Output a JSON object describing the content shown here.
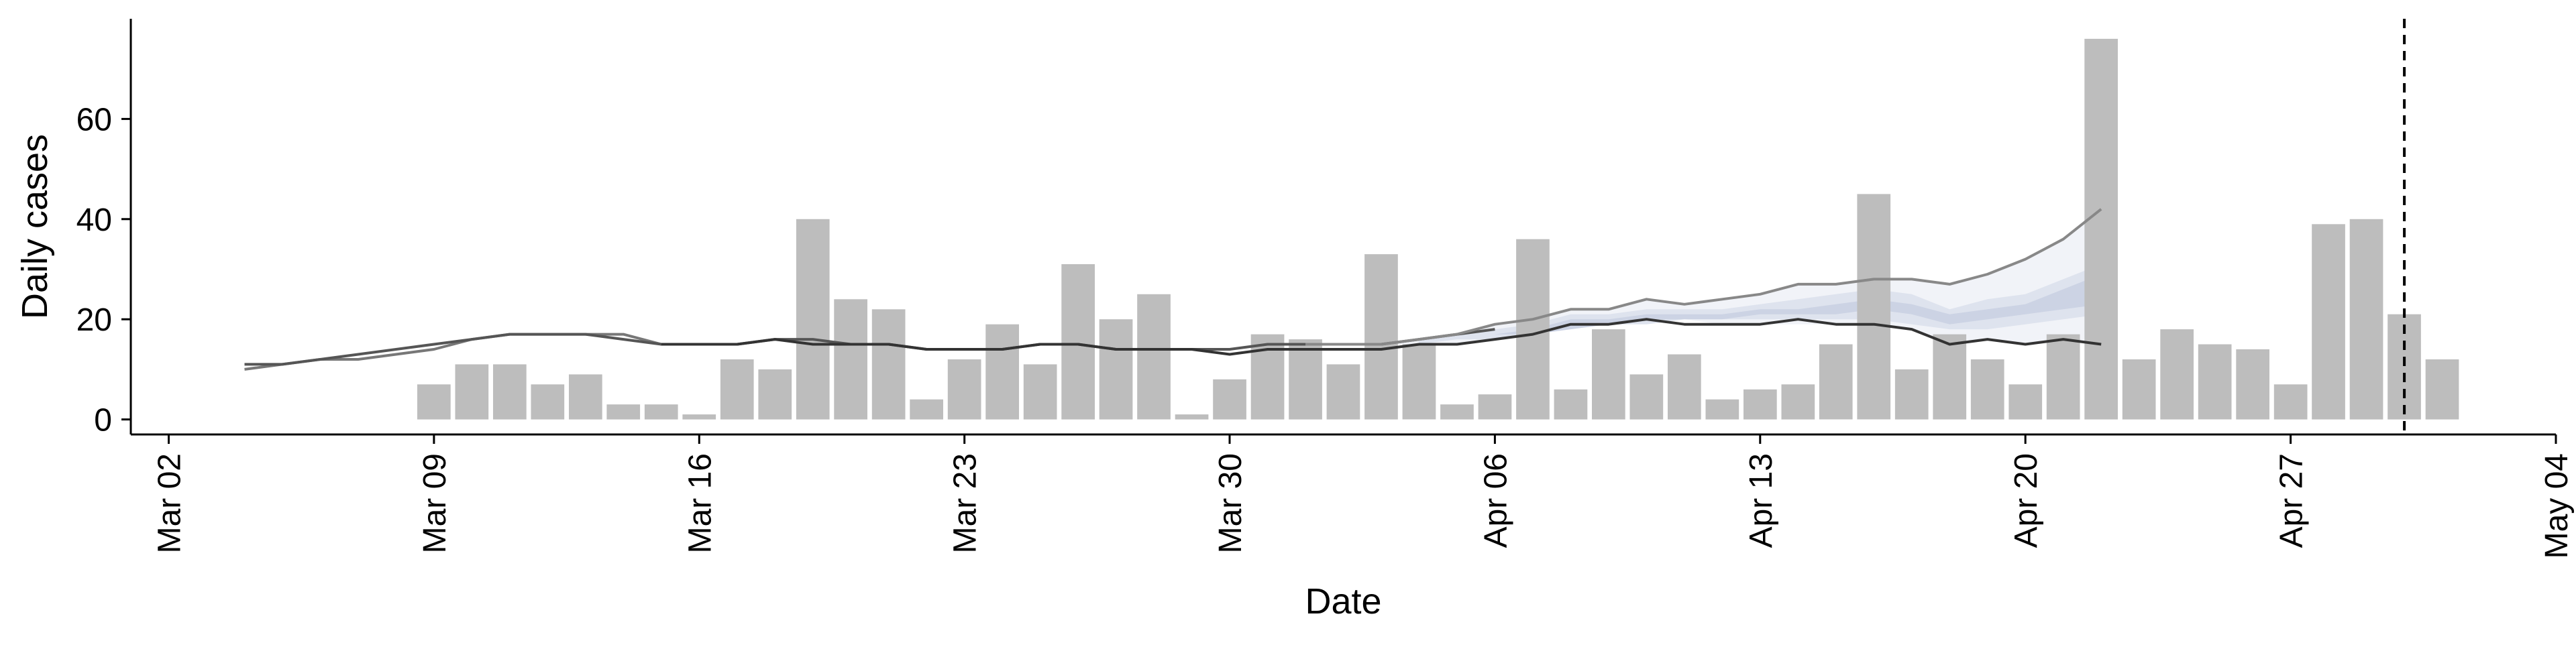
{
  "chart_data": {
    "type": "bar",
    "xlabel": "Date",
    "ylabel": "Daily cases",
    "x_axis_type": "date",
    "xlim": [
      "2020-03-01",
      "2020-05-04"
    ],
    "ylim": [
      -3,
      80
    ],
    "x_ticks": [
      {
        "date": "2020-03-02",
        "label": "Mar 02"
      },
      {
        "date": "2020-03-09",
        "label": "Mar 09"
      },
      {
        "date": "2020-03-16",
        "label": "Mar 16"
      },
      {
        "date": "2020-03-23",
        "label": "Mar 23"
      },
      {
        "date": "2020-03-30",
        "label": "Mar 30"
      },
      {
        "date": "2020-04-06",
        "label": "Apr 06"
      },
      {
        "date": "2020-04-13",
        "label": "Apr 13"
      },
      {
        "date": "2020-04-20",
        "label": "Apr 20"
      },
      {
        "date": "2020-04-27",
        "label": "Apr 27"
      },
      {
        "date": "2020-05-04",
        "label": "May 04"
      }
    ],
    "y_ticks": [
      0,
      20,
      40,
      60
    ],
    "grid": false,
    "bars": {
      "color": "#bdbdbd",
      "start_date": "2020-03-09",
      "values": [
        7,
        11,
        11,
        7,
        9,
        3,
        3,
        1,
        12,
        10,
        40,
        24,
        22,
        4,
        12,
        19,
        11,
        31,
        20,
        25,
        1,
        8,
        17,
        16,
        11,
        33,
        15,
        3,
        5,
        36,
        6,
        18,
        9,
        13,
        4,
        6,
        7,
        15,
        45,
        10,
        17,
        12,
        7,
        17,
        76,
        12,
        18,
        15,
        14,
        7,
        39,
        40,
        21,
        12
      ]
    },
    "lines": [
      {
        "color": "#777777",
        "x": [
          "2020-03-04",
          "2020-03-05",
          "2020-03-06",
          "2020-03-07",
          "2020-03-08",
          "2020-03-09",
          "2020-03-10",
          "2020-03-11",
          "2020-03-12",
          "2020-03-13",
          "2020-03-14",
          "2020-03-15"
        ],
        "y": [
          10,
          11,
          12,
          12,
          13,
          14,
          16,
          17,
          17,
          17,
          17,
          15
        ]
      },
      {
        "color": "#555555",
        "x": [
          "2020-03-04",
          "2020-03-05",
          "2020-03-06",
          "2020-03-07",
          "2020-03-08",
          "2020-03-09",
          "2020-03-10",
          "2020-03-11",
          "2020-03-12",
          "2020-03-13",
          "2020-03-14",
          "2020-03-15",
          "2020-03-16",
          "2020-03-17",
          "2020-03-18",
          "2020-03-19",
          "2020-03-20",
          "2020-03-21",
          "2020-03-22",
          "2020-03-23",
          "2020-03-24",
          "2020-03-25",
          "2020-03-26",
          "2020-03-27",
          "2020-03-28",
          "2020-03-29",
          "2020-03-30",
          "2020-03-31",
          "2020-04-01",
          "2020-04-02",
          "2020-04-03",
          "2020-04-04",
          "2020-04-05",
          "2020-04-06"
        ],
        "y": [
          11,
          11,
          12,
          13,
          14,
          15,
          16,
          17,
          17,
          17,
          16,
          15,
          15,
          15,
          16,
          16,
          15,
          15,
          14,
          14,
          14,
          15,
          15,
          14,
          14,
          14,
          14,
          15,
          15,
          15,
          15,
          16,
          17,
          18
        ]
      },
      {
        "color": "#333333",
        "x": [
          "2020-03-15",
          "2020-03-16",
          "2020-03-17",
          "2020-03-18",
          "2020-03-19",
          "2020-03-20",
          "2020-03-21",
          "2020-03-22",
          "2020-03-23",
          "2020-03-24",
          "2020-03-25",
          "2020-03-26",
          "2020-03-27",
          "2020-03-28",
          "2020-03-29",
          "2020-03-30",
          "2020-03-31",
          "2020-04-01",
          "2020-04-02",
          "2020-04-03",
          "2020-04-04",
          "2020-04-05",
          "2020-04-06",
          "2020-04-07",
          "2020-04-08",
          "2020-04-09",
          "2020-04-10",
          "2020-04-11",
          "2020-04-12",
          "2020-04-13",
          "2020-04-14",
          "2020-04-15",
          "2020-04-16",
          "2020-04-17",
          "2020-04-18",
          "2020-04-19",
          "2020-04-20",
          "2020-04-21",
          "2020-04-22"
        ],
        "y": [
          15,
          15,
          15,
          16,
          15,
          15,
          15,
          14,
          14,
          14,
          15,
          15,
          14,
          14,
          14,
          13,
          14,
          14,
          14,
          14,
          15,
          15,
          16,
          17,
          19,
          19,
          20,
          19,
          19,
          19,
          20,
          19,
          19,
          18,
          15,
          16,
          15,
          16,
          15
        ]
      },
      {
        "color": "#888888",
        "x": [
          "2020-04-01",
          "2020-04-02",
          "2020-04-03",
          "2020-04-04",
          "2020-04-05",
          "2020-04-06",
          "2020-04-07",
          "2020-04-08",
          "2020-04-09",
          "2020-04-10",
          "2020-04-11",
          "2020-04-12",
          "2020-04-13",
          "2020-04-14",
          "2020-04-15",
          "2020-04-16",
          "2020-04-17",
          "2020-04-18",
          "2020-04-19",
          "2020-04-20",
          "2020-04-21",
          "2020-04-22"
        ],
        "y": [
          15,
          15,
          15,
          16,
          17,
          19,
          20,
          22,
          22,
          24,
          23,
          24,
          25,
          27,
          27,
          28,
          28,
          27,
          29,
          32,
          36,
          42
        ]
      }
    ],
    "bands": [
      {
        "color": "#8d9cc4",
        "opacity": 0.12,
        "x": [
          "2020-04-03",
          "2020-04-04",
          "2020-04-05",
          "2020-04-06",
          "2020-04-07",
          "2020-04-08",
          "2020-04-09",
          "2020-04-10",
          "2020-04-11",
          "2020-04-12",
          "2020-04-13",
          "2020-04-14",
          "2020-04-15",
          "2020-04-16",
          "2020-04-17",
          "2020-04-18",
          "2020-04-19",
          "2020-04-20",
          "2020-04-21",
          "2020-04-22"
        ],
        "lower": [
          15,
          15,
          15,
          16,
          17,
          18,
          19,
          19,
          20,
          19,
          19,
          19,
          19,
          19,
          18,
          15,
          16,
          15,
          16,
          15
        ],
        "upper": [
          15,
          16,
          17,
          19,
          20,
          22,
          22,
          24,
          23,
          24,
          25,
          27,
          27,
          28,
          28,
          27,
          29,
          32,
          36,
          42
        ]
      },
      {
        "color": "#8d9cc4",
        "opacity": 0.18,
        "x": [
          "2020-04-04",
          "2020-04-05",
          "2020-04-06",
          "2020-04-07",
          "2020-04-08",
          "2020-04-09",
          "2020-04-10",
          "2020-04-11",
          "2020-04-12",
          "2020-04-13",
          "2020-04-14",
          "2020-04-15",
          "2020-04-16",
          "2020-04-17",
          "2020-04-18",
          "2020-04-19",
          "2020-04-20",
          "2020-04-21",
          "2020-04-22"
        ],
        "lower": [
          15,
          16,
          16,
          17,
          18,
          19,
          19,
          20,
          20,
          20,
          20,
          20,
          20,
          19,
          18,
          18,
          19,
          20,
          21
        ],
        "upper": [
          16,
          17,
          18,
          19,
          21,
          21,
          22,
          22,
          22,
          23,
          24,
          25,
          26,
          25,
          22,
          24,
          25,
          28,
          31
        ]
      },
      {
        "color": "#8d9cc4",
        "opacity": 0.22,
        "x": [
          "2020-04-05",
          "2020-04-06",
          "2020-04-07",
          "2020-04-08",
          "2020-04-09",
          "2020-04-10",
          "2020-04-11",
          "2020-04-12",
          "2020-04-13",
          "2020-04-14",
          "2020-04-15",
          "2020-04-16",
          "2020-04-17",
          "2020-04-18",
          "2020-04-19",
          "2020-04-20",
          "2020-04-21",
          "2020-04-22"
        ],
        "lower": [
          16,
          17,
          17,
          18,
          19,
          20,
          20,
          20,
          21,
          21,
          21,
          22,
          21,
          19,
          20,
          21,
          22,
          23
        ],
        "upper": [
          16,
          17,
          18,
          20,
          20,
          21,
          21,
          21,
          22,
          22,
          23,
          24,
          23,
          21,
          22,
          23,
          26,
          29
        ]
      }
    ],
    "vline": {
      "date": "2020-04-30",
      "style": "dashed",
      "color": "#000000"
    }
  }
}
